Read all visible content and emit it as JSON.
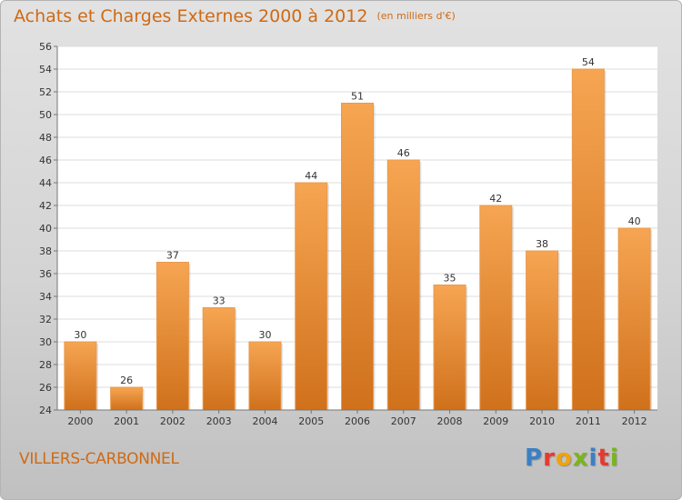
{
  "header": {
    "title": "Achats et Charges Externes 2000 à 2012",
    "subtitle": "(en milliers d'€)"
  },
  "footer": {
    "commune": "VILLERS-CARBONNEL",
    "logo_text": "Proxiti",
    "logo_colors": [
      "#3b7fc4",
      "#e63a2e",
      "#f0a30a",
      "#7ab51d",
      "#3b7fc4",
      "#e63a2e",
      "#7ab51d"
    ]
  },
  "colors": {
    "bar_top": "#f6a552",
    "bar_bottom": "#d0711c",
    "accent": "#cf6a14"
  },
  "chart_data": {
    "type": "bar",
    "title": "Achats et Charges Externes 2000 à 2012",
    "subtitle": "(en milliers d'€)",
    "categories": [
      "2000",
      "2001",
      "2002",
      "2003",
      "2004",
      "2005",
      "2006",
      "2007",
      "2008",
      "2009",
      "2010",
      "2011",
      "2012"
    ],
    "values": [
      30,
      26,
      37,
      33,
      30,
      44,
      51,
      46,
      35,
      42,
      38,
      54,
      40
    ],
    "ylim": [
      24,
      56
    ],
    "yticks": [
      24,
      26,
      28,
      30,
      32,
      34,
      36,
      38,
      40,
      42,
      44,
      46,
      48,
      50,
      52,
      54,
      56
    ],
    "grid": true,
    "data_labels": true
  }
}
